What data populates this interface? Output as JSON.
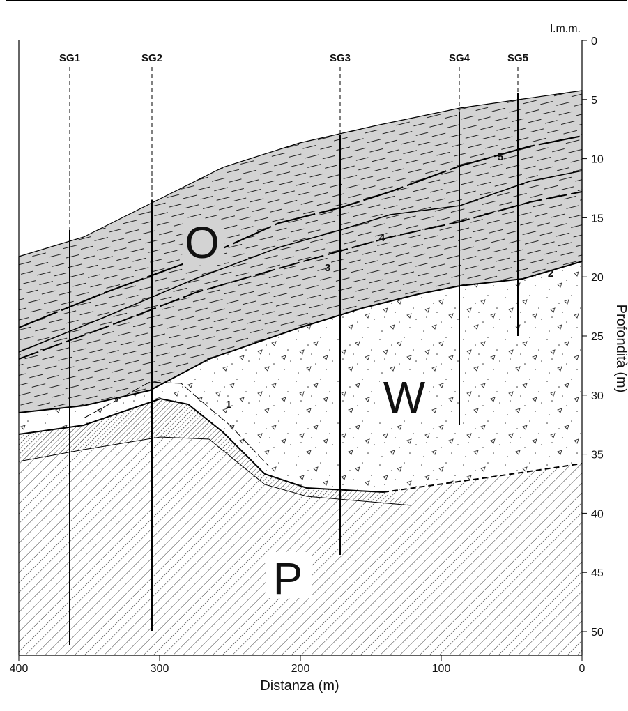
{
  "axes": {
    "x": {
      "label": "Distanza (m)",
      "ticks": [
        400,
        300,
        200,
        100,
        0
      ]
    },
    "y": {
      "label": "Profondità (m)",
      "top_label": "l.m.m.",
      "ticks": [
        0,
        5,
        10,
        15,
        20,
        25,
        30,
        35,
        40,
        45,
        50
      ]
    }
  },
  "boreholes": [
    {
      "label": "SG1"
    },
    {
      "label": "SG2"
    },
    {
      "label": "SG3"
    },
    {
      "label": "SG4"
    },
    {
      "label": "SG5"
    }
  ],
  "units": [
    {
      "label": "O"
    },
    {
      "label": "W"
    },
    {
      "label": "P"
    }
  ],
  "horizons": [
    {
      "label": "1"
    },
    {
      "label": "2"
    },
    {
      "label": "3"
    },
    {
      "label": "4"
    },
    {
      "label": "5"
    }
  ]
}
